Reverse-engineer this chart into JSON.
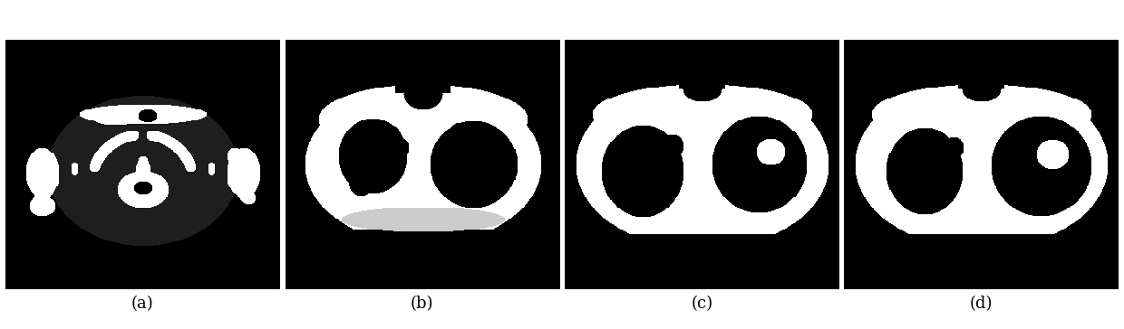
{
  "fig_width": 12.4,
  "fig_height": 3.64,
  "dpi": 100,
  "bg_color": "#ffffff",
  "labels": [
    "(a)",
    "(b)",
    "(c)",
    "(d)"
  ],
  "label_fontsize": 13
}
